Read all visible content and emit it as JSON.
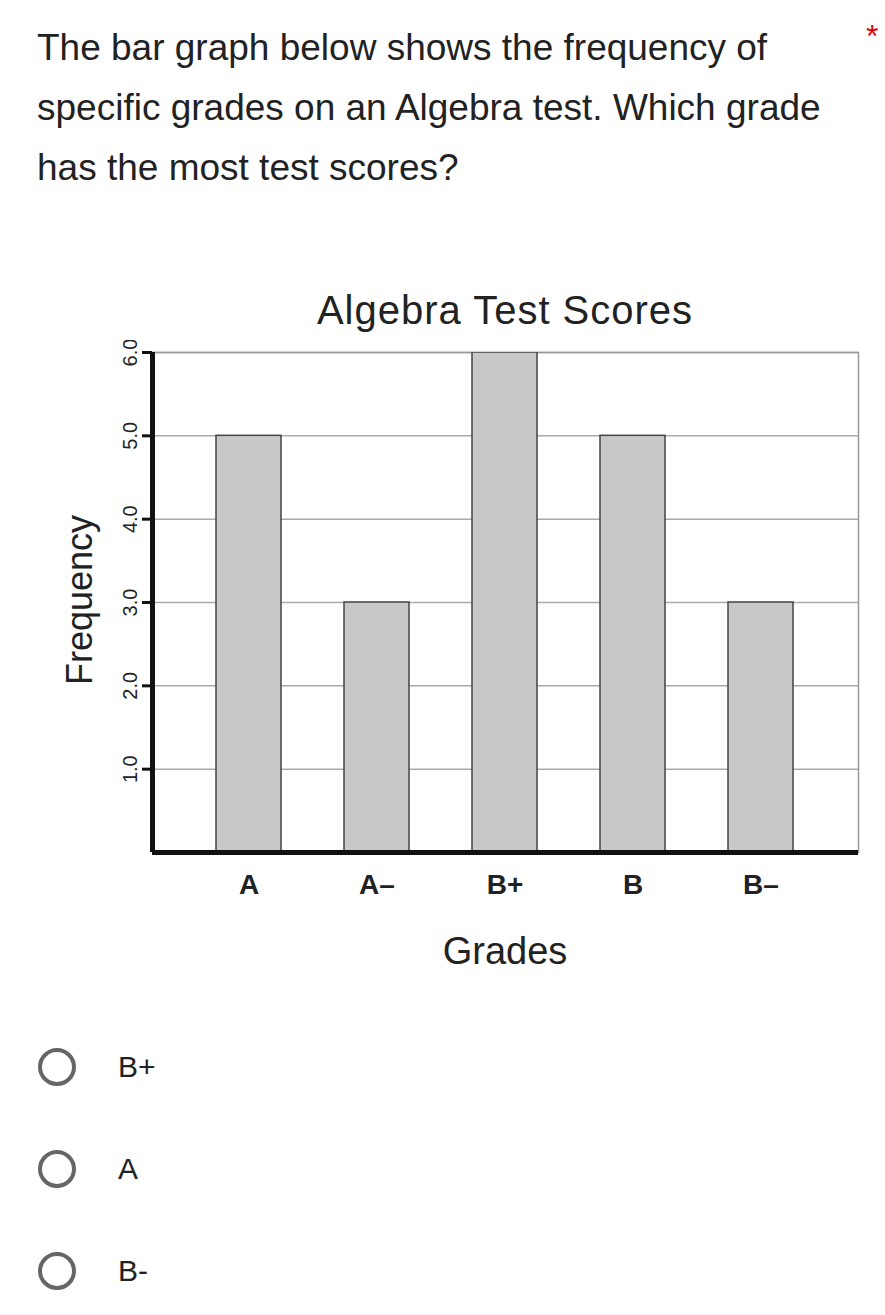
{
  "question": "The bar graph below shows the frequency of specific grades on an Algebra test.  Which grade has the most test scores?",
  "required_mark": "*",
  "options": [
    "B+",
    "A",
    "B-"
  ],
  "chart_data": {
    "type": "bar",
    "title": "Algebra Test Scores",
    "x_label": "Grades",
    "y_label": "Frequency",
    "categories": [
      "A",
      "A–",
      "B+",
      "B",
      "B–"
    ],
    "values": [
      5,
      3,
      6,
      5,
      3
    ],
    "color": "#c8c8c8",
    "ylim": [
      0,
      6
    ],
    "yticks": [
      1,
      2,
      3,
      4,
      5,
      6
    ],
    "grid": true
  }
}
